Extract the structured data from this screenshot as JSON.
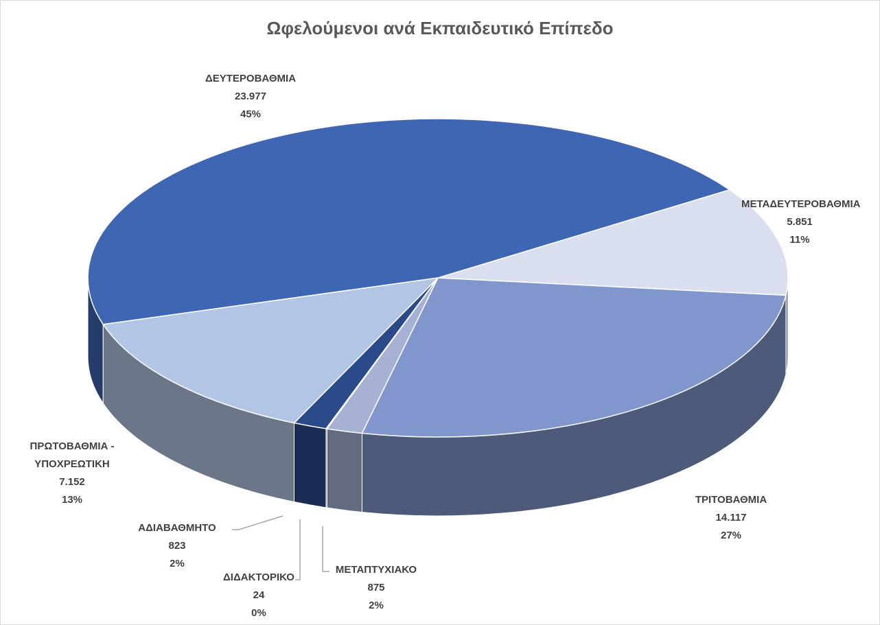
{
  "chart_data": {
    "type": "pie3d",
    "title": "Ωφελούμενοι ανά Εκπαιδευτικό Επίπεδο",
    "categories": [
      "ΔΕΥΤΕΡΟΒΑΘΜΙΑ",
      "ΜΕΤΑΔΕΥΤΕΡΟΒΑΘΜΙΑ",
      "ΤΡΙΤΟΒΑΘΜΙΑ",
      "ΜΕΤΑΠΤΥΧΙΑΚΟ",
      "ΔΙΔΑΚΤΟΡΙΚΟ",
      "ΑΔΙΑΒΑΘΜΗΤΟ",
      "ΠΡΩΤΟΒΑΘΜΙΑ - ΥΠΟΧΡΕΩΤΙΚΗ"
    ],
    "values": [
      23977,
      5851,
      14117,
      875,
      24,
      823,
      7152
    ],
    "value_labels": [
      "23.977",
      "5.851",
      "14.117",
      "875",
      "24",
      "823",
      "7.152"
    ],
    "percent_labels": [
      "45%",
      "11%",
      "27%",
      "2%",
      "0%",
      "2%",
      "13%"
    ],
    "colors": [
      "#3f66b2",
      "#d9dfee",
      "#8096cc",
      "#a6b1d4",
      "#3a5a9e",
      "#2b4a8a",
      "#b3c5e4"
    ]
  }
}
